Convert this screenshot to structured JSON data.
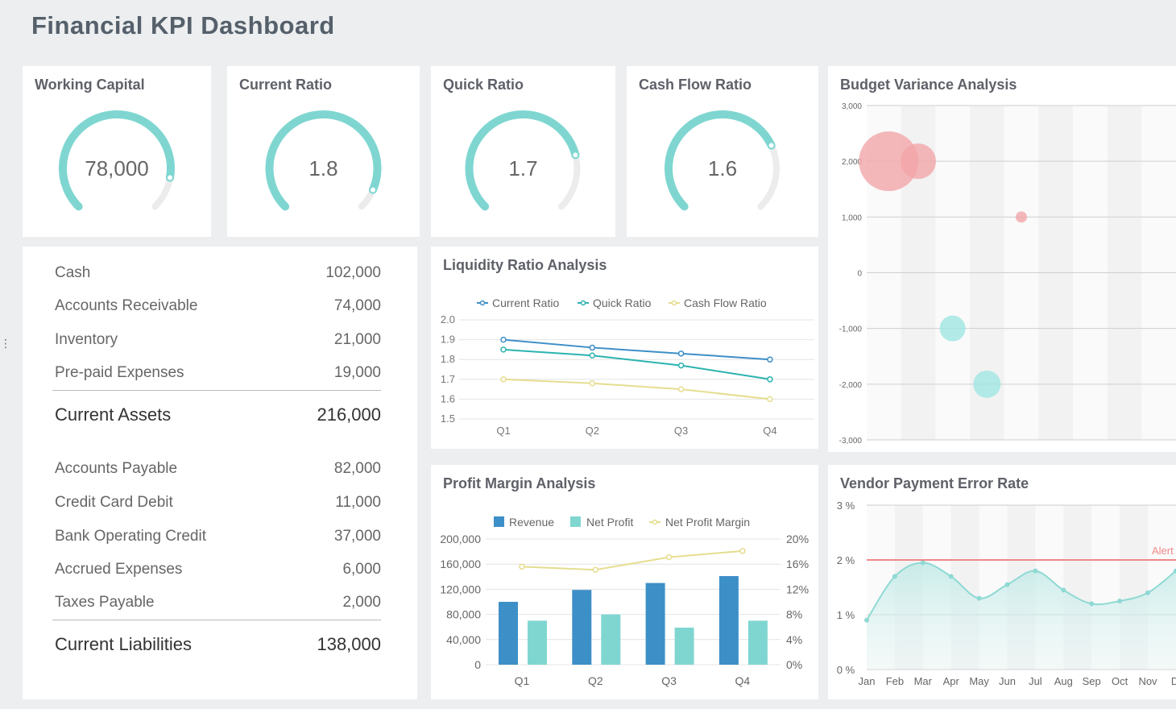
{
  "dashboard": {
    "title": "Financial KPI Dashboard"
  },
  "colors": {
    "teal": "#7fd6d1",
    "track": "#ececec",
    "blue": "#3d8fc8",
    "cyan": "#2bb3b0",
    "yellow": "#e6dd8f",
    "red": "#f08888",
    "bubble_pos": "#f2a6a9",
    "bubble_neg": "#9fe6e2"
  },
  "kpis": [
    {
      "title": "Working Capital",
      "value": "78,000",
      "fraction": 0.87
    },
    {
      "title": "Current Ratio",
      "value": "1.8",
      "fraction": 0.92
    },
    {
      "title": "Quick Ratio",
      "value": "1.7",
      "fraction": 0.78
    },
    {
      "title": "Cash Flow Ratio",
      "value": "1.6",
      "fraction": 0.74
    }
  ],
  "balance": {
    "assets": [
      {
        "label": "Cash",
        "value": "102,000"
      },
      {
        "label": "Accounts Receivable",
        "value": "74,000"
      },
      {
        "label": "Inventory",
        "value": "21,000"
      },
      {
        "label": "Pre-paid Expenses",
        "value": "19,000"
      }
    ],
    "assets_total": {
      "label": "Current Assets",
      "value": "216,000"
    },
    "liabilities": [
      {
        "label": "Accounts Payable",
        "value": "82,000"
      },
      {
        "label": "Credit Card Debit",
        "value": "11,000"
      },
      {
        "label": "Bank Operating Credit",
        "value": "37,000"
      },
      {
        "label": "Accrued Expenses",
        "value": "6,000"
      },
      {
        "label": "Taxes Payable",
        "value": "2,000"
      }
    ],
    "liabilities_total": {
      "label": "Current Liabilities",
      "value": "138,000"
    }
  },
  "chart_data": [
    {
      "id": "liquidity",
      "type": "line",
      "title": "Liquidity Ratio Analysis",
      "categories": [
        "Q1",
        "Q2",
        "Q3",
        "Q4"
      ],
      "ylim": [
        1.5,
        2.0
      ],
      "yticks": [
        "1.5",
        "1.6",
        "1.7",
        "1.8",
        "1.9",
        "2.0"
      ],
      "series": [
        {
          "name": "Current Ratio",
          "values": [
            1.9,
            1.86,
            1.83,
            1.8
          ]
        },
        {
          "name": "Quick Ratio",
          "values": [
            1.85,
            1.82,
            1.77,
            1.7
          ]
        },
        {
          "name": "Cash Flow Ratio",
          "values": [
            1.7,
            1.68,
            1.65,
            1.6
          ]
        }
      ]
    },
    {
      "id": "profit",
      "type": "bar",
      "title": "Profit Margin Analysis",
      "categories": [
        "Q1",
        "Q2",
        "Q3",
        "Q4"
      ],
      "ylim": [
        0,
        200000
      ],
      "yticks": [
        "0",
        "40,000",
        "80,000",
        "120,000",
        "160,000",
        "200,000"
      ],
      "y2lim": [
        0,
        20
      ],
      "y2ticks": [
        "0%",
        "4%",
        "8%",
        "12%",
        "16%",
        "20%"
      ],
      "series": [
        {
          "name": "Revenue",
          "values": [
            100000,
            119000,
            130000,
            141000
          ]
        },
        {
          "name": "Net Profit",
          "values": [
            70000,
            80000,
            59000,
            70000
          ]
        },
        {
          "name": "Net Profit Margin",
          "values": [
            15.6,
            15.1,
            17.1,
            18.1
          ]
        }
      ]
    },
    {
      "id": "budget",
      "type": "scatter",
      "title": "Budget Variance Analysis",
      "ylim": [
        -3000,
        3000
      ],
      "yticks": [
        "-3,000",
        "-2,000",
        "-1,000",
        "0",
        "1,000",
        "2,000",
        "3,000"
      ],
      "x_slots": 9,
      "points": [
        {
          "x": 1,
          "y": 2000,
          "size": 37
        },
        {
          "x": 2,
          "y": 2000,
          "size": 22
        },
        {
          "x": 3,
          "y": -1000,
          "size": 16
        },
        {
          "x": 4,
          "y": -2000,
          "size": 17
        },
        {
          "x": 5,
          "y": 1000,
          "size": 7
        }
      ]
    },
    {
      "id": "vendor",
      "type": "area",
      "title": "Vendor Payment Error Rate",
      "categories": [
        "Jan",
        "Feb",
        "Mar",
        "Apr",
        "May",
        "Jun",
        "Jul",
        "Aug",
        "Sep",
        "Oct",
        "Nov",
        "Dec"
      ],
      "ylim": [
        0,
        3
      ],
      "yticks": [
        "0 %",
        "1 %",
        "2 %",
        "3 %"
      ],
      "values": [
        0.9,
        1.7,
        1.95,
        1.7,
        1.3,
        1.55,
        1.8,
        1.45,
        1.2,
        1.25,
        1.4,
        1.8
      ],
      "alert": {
        "value": 2,
        "label": "Alert"
      },
      "label_dec": "Dec"
    }
  ]
}
